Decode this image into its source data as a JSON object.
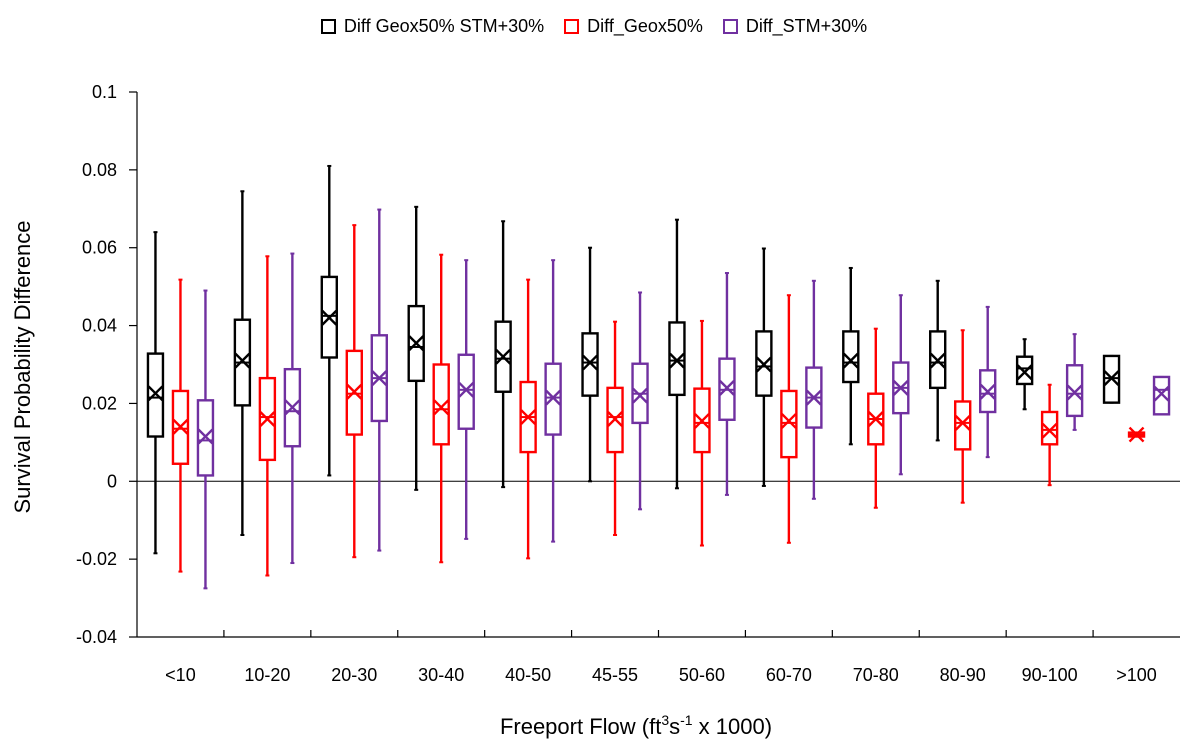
{
  "chart_data": {
    "type": "box",
    "xlabel": "Freeport Flow (ft3s-1 x 1000)",
    "xlabel_parts": {
      "prefix": "Freeport Flow (ft",
      "sup1": "3",
      "mid": "s",
      "sup2": "-1",
      "suffix": " x 1000)"
    },
    "ylabel": "Survival Probability Difference",
    "ylim": [
      -0.04,
      0.1
    ],
    "yticks": [
      -0.04,
      -0.02,
      0,
      0.02,
      0.04,
      0.06,
      0.08,
      0.1
    ],
    "ytick_labels": [
      "-0.04",
      "-0.02",
      "0",
      "0.02",
      "0.04",
      "0.06",
      "0.08",
      "0.1"
    ],
    "categories": [
      "<10",
      "10-20",
      "20-30",
      "30-40",
      "40-50",
      "45-55",
      "50-60",
      "60-70",
      "70-80",
      "80-90",
      "90-100",
      ">100"
    ],
    "legend_position": "top-center",
    "grid": false,
    "series": [
      {
        "name": "Diff Geox50% STM+30%",
        "color": "#000000",
        "boxes": [
          {
            "min": -0.0185,
            "q1": 0.0115,
            "median": 0.0215,
            "q3": 0.0328,
            "max": 0.064,
            "mean": 0.0226
          },
          {
            "min": -0.0138,
            "q1": 0.0195,
            "median": 0.0305,
            "q3": 0.0415,
            "max": 0.0745,
            "mean": 0.031
          },
          {
            "min": 0.0015,
            "q1": 0.0318,
            "median": 0.0425,
            "q3": 0.0525,
            "max": 0.081,
            "mean": 0.042
          },
          {
            "min": -0.0022,
            "q1": 0.0258,
            "median": 0.0345,
            "q3": 0.045,
            "max": 0.0705,
            "mean": 0.0355
          },
          {
            "min": -0.0015,
            "q1": 0.023,
            "median": 0.0315,
            "q3": 0.041,
            "max": 0.0668,
            "mean": 0.032
          },
          {
            "min": 0.0,
            "q1": 0.022,
            "median": 0.0305,
            "q3": 0.038,
            "max": 0.06,
            "mean": 0.0305
          },
          {
            "min": -0.0018,
            "q1": 0.0222,
            "median": 0.031,
            "q3": 0.0408,
            "max": 0.0672,
            "mean": 0.031
          },
          {
            "min": -0.0012,
            "q1": 0.022,
            "median": 0.0295,
            "q3": 0.0385,
            "max": 0.0598,
            "mean": 0.03
          },
          {
            "min": 0.0095,
            "q1": 0.0255,
            "median": 0.0305,
            "q3": 0.0385,
            "max": 0.0548,
            "mean": 0.031
          },
          {
            "min": 0.0105,
            "q1": 0.024,
            "median": 0.0305,
            "q3": 0.0385,
            "max": 0.0515,
            "mean": 0.031
          },
          {
            "min": 0.0185,
            "q1": 0.025,
            "median": 0.029,
            "q3": 0.032,
            "max": 0.0365,
            "mean": 0.028
          },
          {
            "min": 0.0202,
            "q1": 0.0202,
            "median": 0.0265,
            "q3": 0.0322,
            "max": 0.0322,
            "mean": 0.0265
          }
        ]
      },
      {
        "name": "Diff_Geox50%",
        "color": "#ff0000",
        "boxes": [
          {
            "min": -0.0232,
            "q1": 0.0045,
            "median": 0.0135,
            "q3": 0.0232,
            "max": 0.0518,
            "mean": 0.014
          },
          {
            "min": -0.0242,
            "q1": 0.0055,
            "median": 0.0165,
            "q3": 0.0265,
            "max": 0.0578,
            "mean": 0.016
          },
          {
            "min": -0.0195,
            "q1": 0.012,
            "median": 0.0225,
            "q3": 0.0335,
            "max": 0.0658,
            "mean": 0.023
          },
          {
            "min": -0.0208,
            "q1": 0.0095,
            "median": 0.0185,
            "q3": 0.03,
            "max": 0.0582,
            "mean": 0.019
          },
          {
            "min": -0.0198,
            "q1": 0.0075,
            "median": 0.0165,
            "q3": 0.0255,
            "max": 0.0518,
            "mean": 0.0165
          },
          {
            "min": -0.0138,
            "q1": 0.0075,
            "median": 0.0165,
            "q3": 0.024,
            "max": 0.041,
            "mean": 0.016
          },
          {
            "min": -0.0165,
            "q1": 0.0075,
            "median": 0.015,
            "q3": 0.0238,
            "max": 0.0412,
            "mean": 0.0155
          },
          {
            "min": -0.0158,
            "q1": 0.0062,
            "median": 0.015,
            "q3": 0.0232,
            "max": 0.0478,
            "mean": 0.0155
          },
          {
            "min": -0.0068,
            "q1": 0.0095,
            "median": 0.016,
            "q3": 0.0225,
            "max": 0.0392,
            "mean": 0.016
          },
          {
            "min": -0.0055,
            "q1": 0.0082,
            "median": 0.015,
            "q3": 0.0205,
            "max": 0.0388,
            "mean": 0.015
          },
          {
            "min": -0.001,
            "q1": 0.0095,
            "median": 0.0132,
            "q3": 0.0178,
            "max": 0.0248,
            "mean": 0.013
          },
          {
            "min": 0.0115,
            "q1": 0.0115,
            "median": 0.012,
            "q3": 0.0125,
            "max": 0.0125,
            "mean": 0.012
          }
        ]
      },
      {
        "name": "Diff_STM+30%",
        "color": "#7030a0",
        "boxes": [
          {
            "min": -0.0275,
            "q1": 0.0015,
            "median": 0.0105,
            "q3": 0.0208,
            "max": 0.049,
            "mean": 0.0115
          },
          {
            "min": -0.021,
            "q1": 0.009,
            "median": 0.018,
            "q3": 0.0288,
            "max": 0.0585,
            "mean": 0.019
          },
          {
            "min": -0.0178,
            "q1": 0.0155,
            "median": 0.0265,
            "q3": 0.0375,
            "max": 0.0698,
            "mean": 0.0265
          },
          {
            "min": -0.0148,
            "q1": 0.0135,
            "median": 0.0235,
            "q3": 0.0325,
            "max": 0.0568,
            "mean": 0.0235
          },
          {
            "min": -0.0155,
            "q1": 0.012,
            "median": 0.0215,
            "q3": 0.0302,
            "max": 0.0568,
            "mean": 0.0215
          },
          {
            "min": -0.0072,
            "q1": 0.015,
            "median": 0.0225,
            "q3": 0.0302,
            "max": 0.0485,
            "mean": 0.022
          },
          {
            "min": -0.0035,
            "q1": 0.0158,
            "median": 0.0235,
            "q3": 0.0315,
            "max": 0.0535,
            "mean": 0.024
          },
          {
            "min": -0.0045,
            "q1": 0.0138,
            "median": 0.0215,
            "q3": 0.0292,
            "max": 0.0515,
            "mean": 0.0215
          },
          {
            "min": 0.0018,
            "q1": 0.0175,
            "median": 0.024,
            "q3": 0.0305,
            "max": 0.0478,
            "mean": 0.024
          },
          {
            "min": 0.0062,
            "q1": 0.0178,
            "median": 0.0225,
            "q3": 0.0285,
            "max": 0.0448,
            "mean": 0.023
          },
          {
            "min": 0.0132,
            "q1": 0.0168,
            "median": 0.0225,
            "q3": 0.0298,
            "max": 0.0378,
            "mean": 0.0228
          },
          {
            "min": 0.0172,
            "q1": 0.0172,
            "median": 0.0235,
            "q3": 0.0268,
            "max": 0.0268,
            "mean": 0.0225
          }
        ]
      }
    ]
  }
}
